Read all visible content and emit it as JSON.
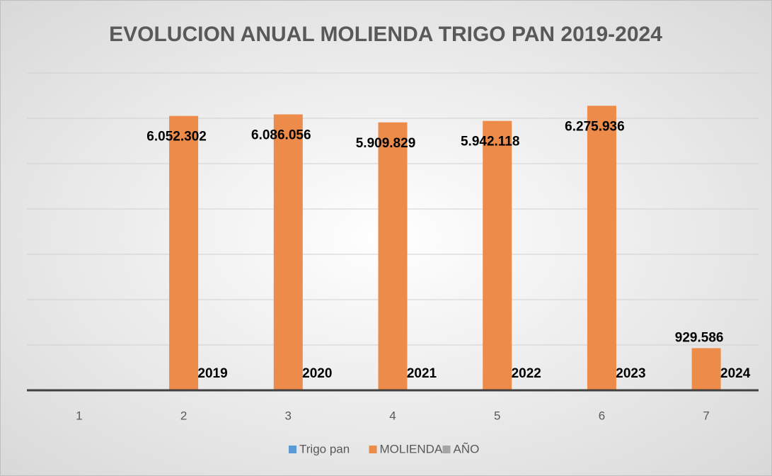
{
  "chart_data": {
    "type": "bar",
    "title": "EVOLUCION ANUAL MOLIENDA TRIGO PAN 2019-2024",
    "categories": [
      "1",
      "2",
      "3",
      "4",
      "5",
      "6",
      "7"
    ],
    "series": [
      {
        "name": "Trigo pan",
        "color": "#5b9bd5",
        "values": [
          null,
          null,
          null,
          null,
          null,
          null,
          null
        ]
      },
      {
        "name": "MOLIENDA",
        "color": "#ed8b4a",
        "values": [
          null,
          6052302,
          6086056,
          5909829,
          5942118,
          6275936,
          929586
        ],
        "value_labels": [
          null,
          "6.052.302",
          "6.086.056",
          "5.909.829",
          "5.942.118",
          "6.275.936",
          "929.586"
        ]
      },
      {
        "name": "AÑO",
        "color": "#a5a5a5",
        "values": [
          null,
          2019,
          2020,
          2021,
          2022,
          2023,
          2024
        ]
      }
    ],
    "ylim": [
      0,
      7000000
    ],
    "yticks": [
      0,
      1000000,
      2000000,
      3000000,
      4000000,
      5000000,
      6000000,
      7000000
    ],
    "grid": true,
    "legend": "bottom"
  }
}
